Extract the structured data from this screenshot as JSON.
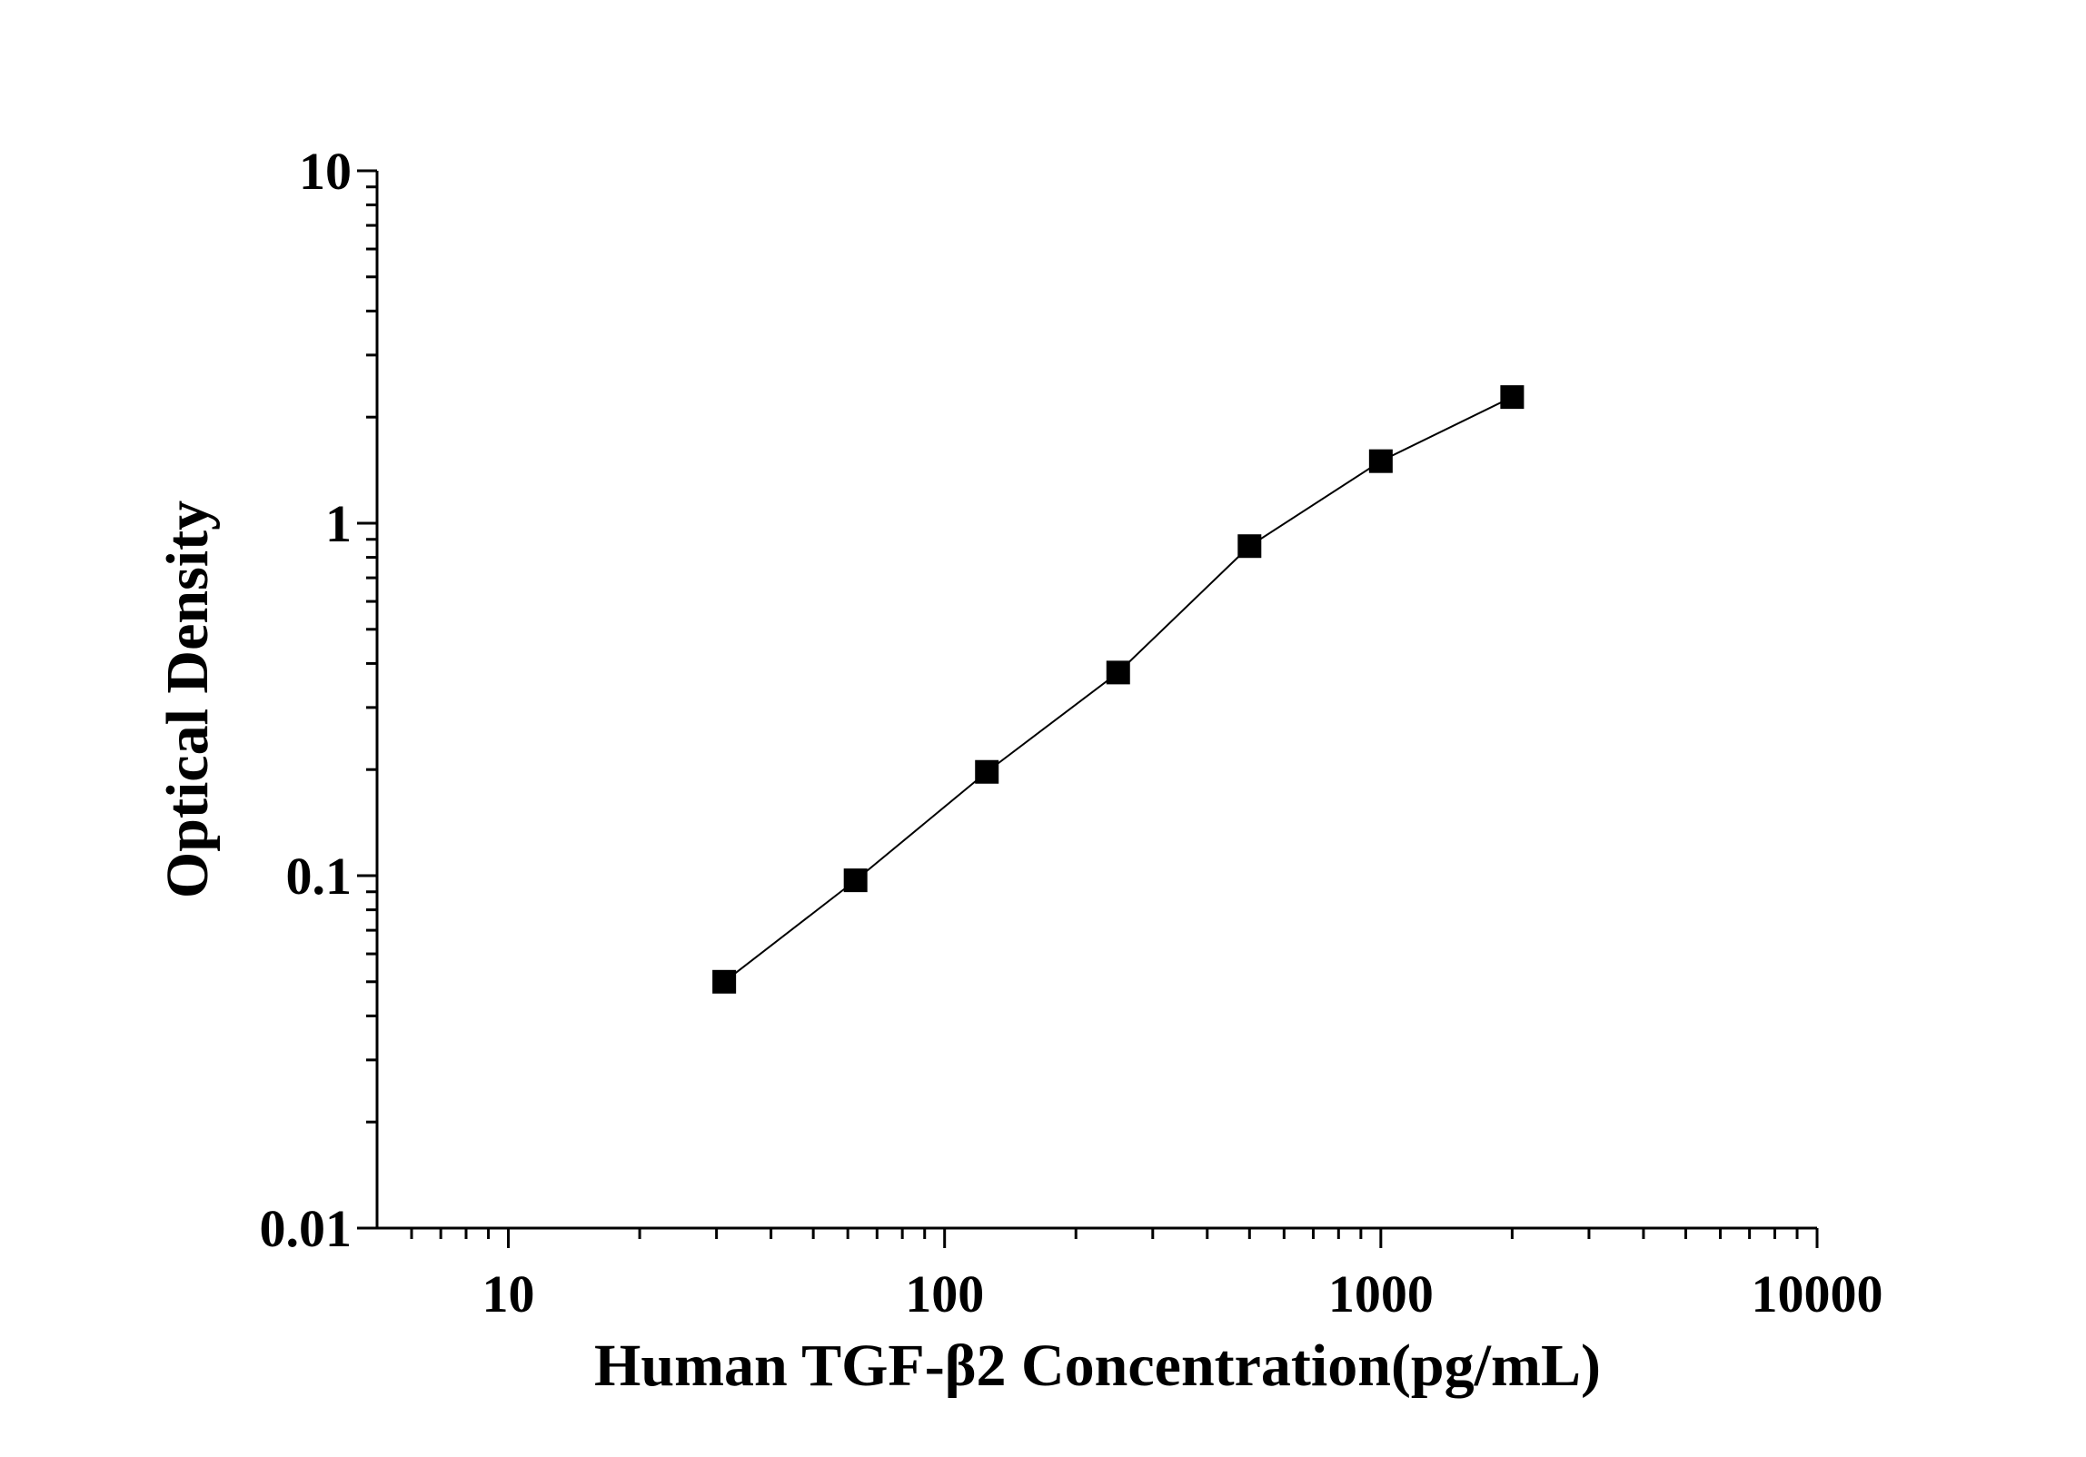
{
  "chart_data": {
    "type": "line",
    "x_label": "Human TGF-β2 Concentration(pg/mL)",
    "y_label": "Optical Density",
    "x": [
      31.25,
      62.5,
      125,
      250,
      500,
      1000,
      2000
    ],
    "series": [
      {
        "color": "#000000",
        "values": [
          0.05,
          0.097,
          0.197,
          0.377,
          0.861,
          1.5,
          2.28
        ]
      }
    ],
    "xlim": [
      5,
      10000
    ],
    "xticks": [
      10,
      100,
      1000,
      10000
    ],
    "xscale": "log",
    "ylim": [
      0.01,
      10
    ],
    "yticks": [
      0.01,
      0.1,
      1,
      10
    ],
    "yscale": "log",
    "marker": "square"
  }
}
